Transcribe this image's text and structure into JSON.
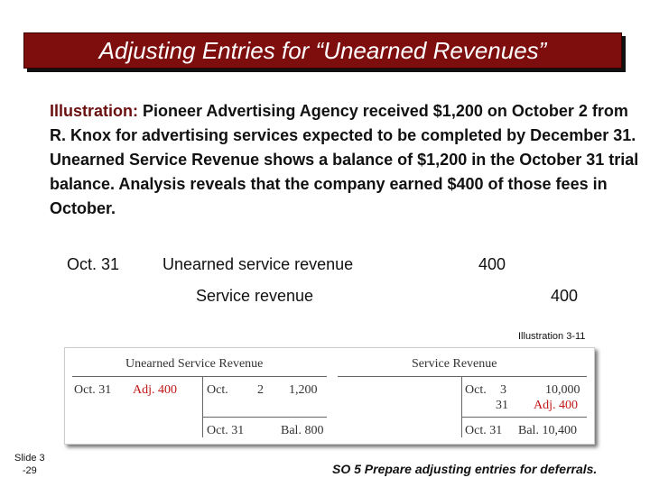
{
  "title": "Adjusting Entries for “Unearned Revenues”",
  "illustration": {
    "label": "Illustration:",
    "text": "Pioneer Advertising Agency received $1,200 on October 2 from R. Knox for advertising services expected to be completed by December 31.  Unearned Service Revenue shows a balance of $1,200 in the October 31 trial balance. Analysis reveals that the company earned $400 of those fees in October."
  },
  "journal_entry": {
    "date": "Oct. 31",
    "debit_account": "Unearned service revenue",
    "debit_amount": "400",
    "credit_account": "Service revenue",
    "credit_amount": "400"
  },
  "figure_label": "Illustration 3-11",
  "t_accounts": {
    "unearned": {
      "title": "Unearned Service Revenue",
      "debit_date": "Oct. 31",
      "debit_entry": "Adj. 400",
      "credit_date": "Oct.",
      "credit_day": "2",
      "credit_amount": "1,200",
      "balance_date": "Oct. 31",
      "balance": "Bal. 800"
    },
    "service": {
      "title": "Service Revenue",
      "credit_month": "Oct.",
      "credit_day1": "3",
      "credit_amount1": "10,000",
      "credit_day2": "31",
      "credit_amount2": "Adj. 400",
      "balance_date": "Oct. 31",
      "balance": "Bal. 10,400"
    }
  },
  "footer": {
    "slide_line1": "Slide 3",
    "slide_line2": "-29",
    "objective": "SO 5  Prepare adjusting entries for deferrals."
  }
}
